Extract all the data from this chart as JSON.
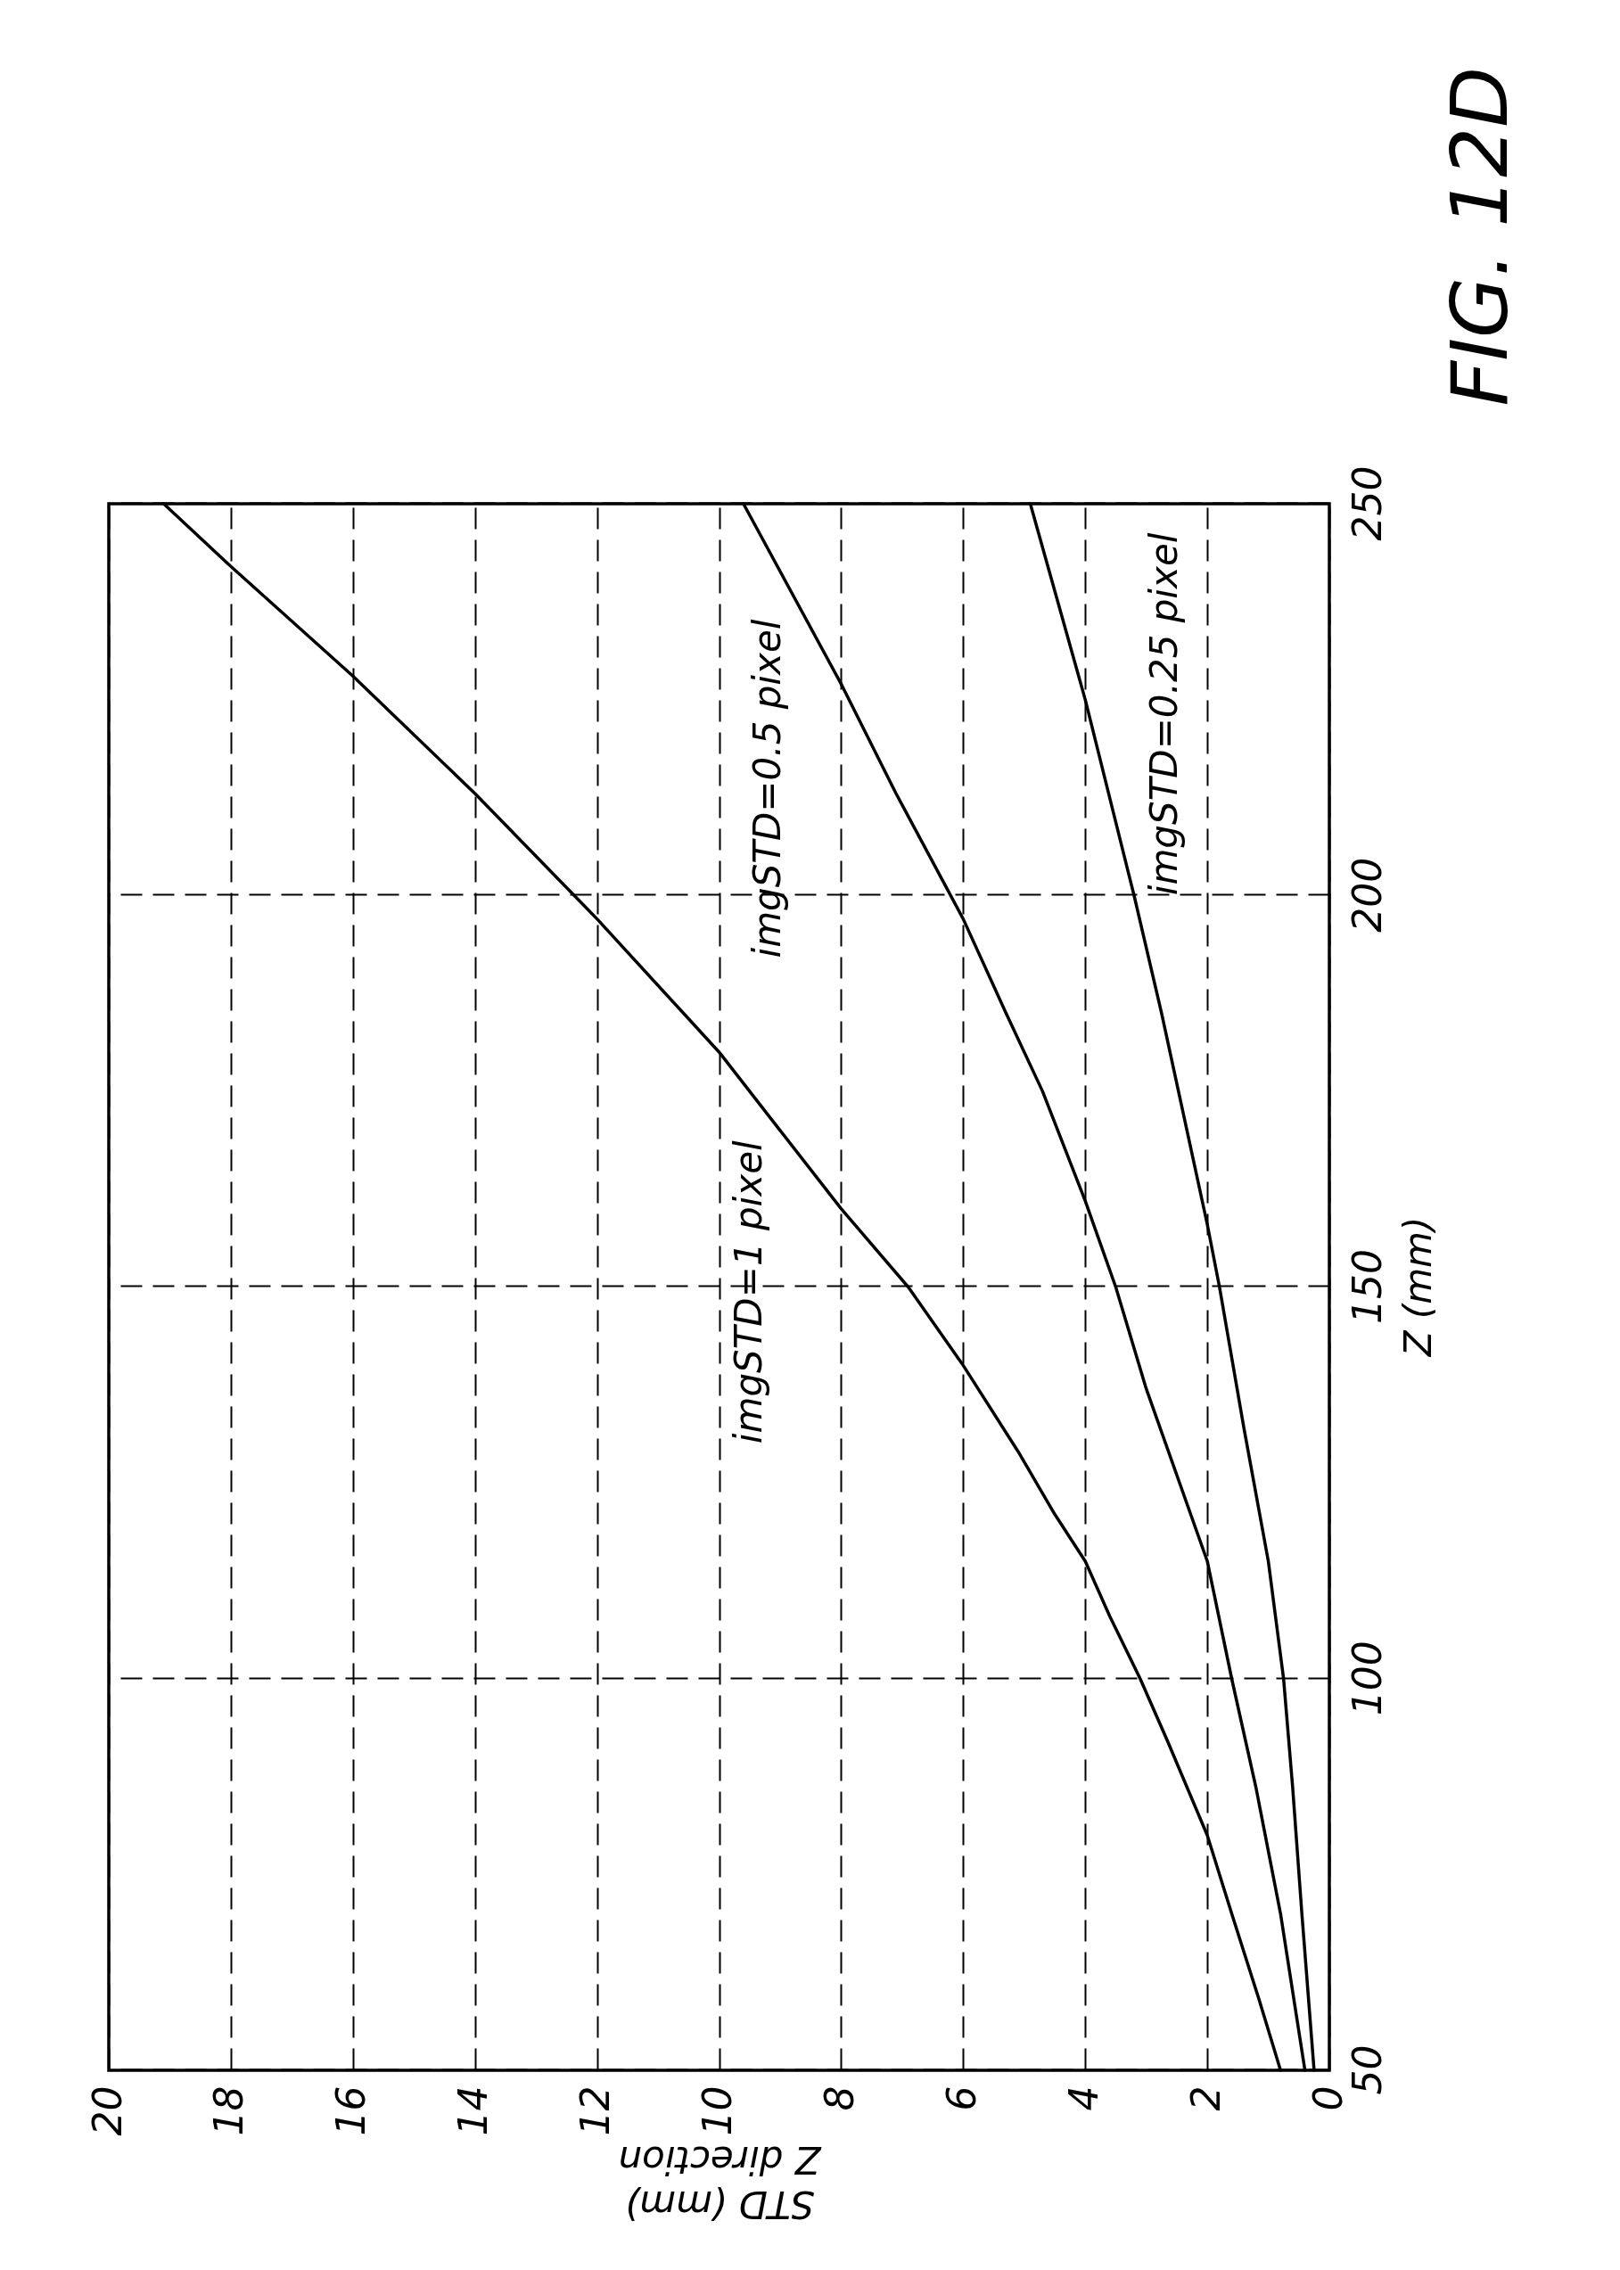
{
  "chart_data": {
    "type": "line",
    "title": "FIG. 12D",
    "xlabel": "STD (mm)\nZ direction",
    "ylabel": "Z (mm)",
    "xlim": [
      20,
      0
    ],
    "xticks": [
      20,
      18,
      16,
      14,
      12,
      10,
      8,
      6,
      4,
      2,
      0
    ],
    "ylim": [
      50,
      250
    ],
    "yticks": [
      50,
      100,
      150,
      200,
      250
    ],
    "grid": true,
    "legend": false,
    "marker": "none",
    "line_style": "solid",
    "series": [
      {
        "name": "imgSTD=1 pixel",
        "color": "#000000",
        "x": [
          0.8,
          1.15,
          1.6,
          2.0,
          2.65,
          3.1,
          3.6,
          4.0,
          4.5,
          5.1,
          6.0,
          6.9,
          8.0,
          9.0,
          10.0,
          12.0,
          14.0,
          16.0,
          18.0,
          19.1
        ],
        "values": [
          50,
          59,
          70,
          80,
          92,
          100,
          108,
          115,
          121,
          129,
          140,
          150,
          160,
          170,
          180,
          197,
          213,
          228,
          242,
          250
        ]
      },
      {
        "name": "imgSTD=0.5 pixel",
        "color": "#000000",
        "x": [
          0.4,
          0.8,
          1.2,
          1.6,
          2.0,
          3.0,
          3.5,
          4.0,
          4.7,
          5.3,
          6.0,
          7.1,
          8.0,
          9.6
        ],
        "values": [
          50,
          70,
          86,
          100,
          115,
          137,
          150,
          161,
          175,
          185,
          197,
          213,
          227,
          250
        ]
      },
      {
        "name": "imgSTD=0.25 pixel",
        "color": "#000000",
        "x": [
          0.25,
          0.45,
          0.6,
          0.75,
          1.0,
          1.4,
          1.8,
          2.0,
          2.75,
          3.2,
          4.0,
          4.9
        ],
        "values": [
          50,
          70,
          86,
          100,
          115,
          132,
          150,
          158,
          185,
          200,
          225,
          250
        ]
      }
    ]
  }
}
